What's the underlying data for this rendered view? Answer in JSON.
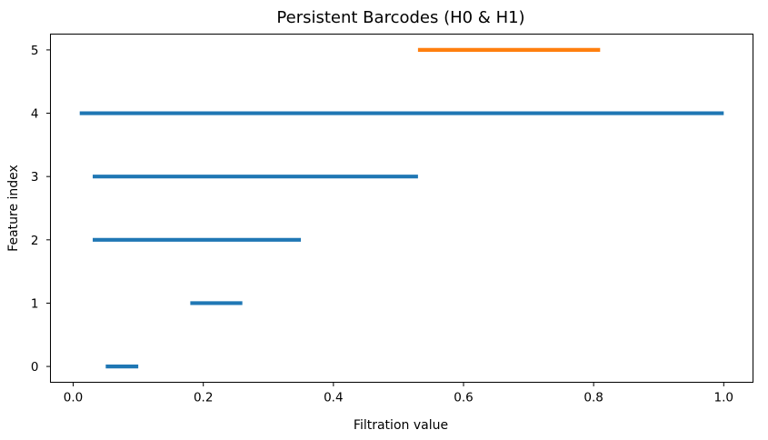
{
  "chart_data": {
    "type": "barcode",
    "title": "Persistent Barcodes (H0 & H1)",
    "xlabel": "Filtration value",
    "ylabel": "Feature index",
    "xlim": [
      -0.035,
      1.045
    ],
    "ylim": [
      -0.25,
      5.25
    ],
    "xticks": [
      {
        "value": 0.0,
        "label": "0.0"
      },
      {
        "value": 0.2,
        "label": "0.2"
      },
      {
        "value": 0.4,
        "label": "0.4"
      },
      {
        "value": 0.6,
        "label": "0.6"
      },
      {
        "value": 0.8,
        "label": "0.8"
      },
      {
        "value": 1.0,
        "label": "1.0"
      }
    ],
    "yticks": [
      {
        "value": 0,
        "label": "0"
      },
      {
        "value": 1,
        "label": "1"
      },
      {
        "value": 2,
        "label": "2"
      },
      {
        "value": 3,
        "label": "3"
      },
      {
        "value": 4,
        "label": "4"
      },
      {
        "value": 5,
        "label": "5"
      }
    ],
    "grid": false,
    "series": [
      {
        "dimension": "H0",
        "color": "#1f77b4",
        "bars": [
          {
            "index": 0,
            "birth": 0.05,
            "death": 0.1
          },
          {
            "index": 1,
            "birth": 0.18,
            "death": 0.26
          },
          {
            "index": 2,
            "birth": 0.03,
            "death": 0.35
          },
          {
            "index": 3,
            "birth": 0.03,
            "death": 0.53
          },
          {
            "index": 4,
            "birth": 0.01,
            "death": 1.0
          }
        ]
      },
      {
        "dimension": "H1",
        "color": "#ff7f0e",
        "bars": [
          {
            "index": 5,
            "birth": 0.53,
            "death": 0.81
          }
        ]
      }
    ]
  }
}
